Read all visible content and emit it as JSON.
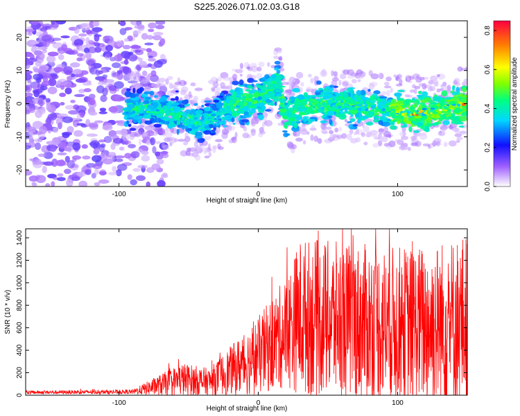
{
  "title": "S225.2026.071.02.03.G18",
  "chart_data": [
    {
      "type": "heatmap",
      "xlabel": "Height of straight line (km)",
      "ylabel": "Frequency (Hz)",
      "xlim": [
        -167,
        150
      ],
      "ylim": [
        -25,
        25
      ],
      "xticks": [
        -100,
        0,
        100
      ],
      "yticks": [
        -20,
        -10,
        0,
        10,
        20
      ],
      "colorbar": {
        "label": "Normalized spectral amplitude",
        "range": [
          0,
          0.85
        ],
        "ticks": [
          0.0,
          0.2,
          0.4,
          0.6,
          0.8
        ]
      },
      "ridge": [
        {
          "x": -90,
          "f": -1
        },
        {
          "x": -70,
          "f": -2
        },
        {
          "x": -55,
          "f": -4
        },
        {
          "x": -40,
          "f": -6
        },
        {
          "x": -25,
          "f": -2
        },
        {
          "x": -10,
          "f": 1
        },
        {
          "x": 0,
          "f": 1
        },
        {
          "x": 10,
          "f": 4
        },
        {
          "x": 14,
          "f": 7
        },
        {
          "x": 20,
          "f": -5
        },
        {
          "x": 30,
          "f": -1
        },
        {
          "x": 60,
          "f": 0
        },
        {
          "x": 90,
          "f": -2
        },
        {
          "x": 110,
          "f": -3
        },
        {
          "x": 130,
          "f": -2
        },
        {
          "x": 150,
          "f": 0
        }
      ]
    },
    {
      "type": "line",
      "series": [
        {
          "name": "SNR",
          "color": "#ff0000"
        }
      ],
      "xlabel": "Height of straight line (km)",
      "ylabel": "SNR (10 * v/v)",
      "xlim": [
        -167,
        150
      ],
      "ylim": [
        0,
        1480
      ],
      "xticks": [
        -100,
        0,
        100
      ],
      "yticks": [
        0,
        200,
        400,
        600,
        800,
        1000,
        1200,
        1400
      ],
      "envelope": [
        {
          "x": -167,
          "mean": 25,
          "amp": 15
        },
        {
          "x": -90,
          "mean": 30,
          "amp": 20
        },
        {
          "x": -80,
          "mean": 60,
          "amp": 60
        },
        {
          "x": -55,
          "mean": 140,
          "amp": 150
        },
        {
          "x": -35,
          "mean": 120,
          "amp": 120
        },
        {
          "x": -15,
          "mean": 250,
          "amp": 250
        },
        {
          "x": 0,
          "mean": 350,
          "amp": 350
        },
        {
          "x": 20,
          "mean": 560,
          "amp": 500
        },
        {
          "x": 30,
          "mean": 700,
          "amp": 700
        },
        {
          "x": 70,
          "mean": 650,
          "amp": 700
        },
        {
          "x": 110,
          "mean": 620,
          "amp": 700
        },
        {
          "x": 150,
          "mean": 650,
          "amp": 800
        }
      ]
    }
  ]
}
